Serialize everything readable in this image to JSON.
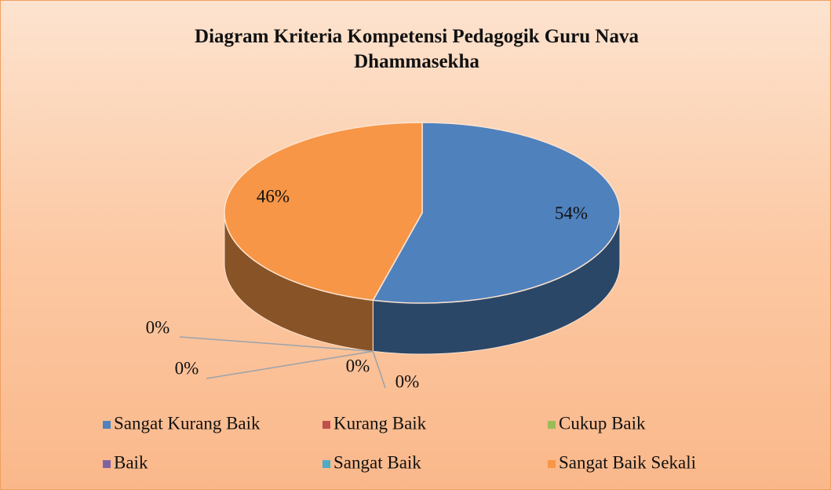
{
  "chart_data": {
    "type": "pie",
    "title": "Diagram Kriteria Kompetensi Pedagogik Guru Nava Dhammasekha",
    "categories": [
      "Sangat Kurang Baik",
      "Kurang Baik",
      "Cukup Baik",
      "Baik",
      "Sangat Baik",
      "Sangat Baik Sekali"
    ],
    "values": [
      54,
      0,
      0,
      0,
      0,
      46
    ],
    "value_labels": [
      "54%",
      "0%",
      "0%",
      "0%",
      "0%",
      "46%"
    ],
    "colors": [
      "#4f81bd",
      "#c0504d",
      "#9bbb59",
      "#8064a2",
      "#4bacc6",
      "#f79646"
    ],
    "legend": "bottom"
  }
}
